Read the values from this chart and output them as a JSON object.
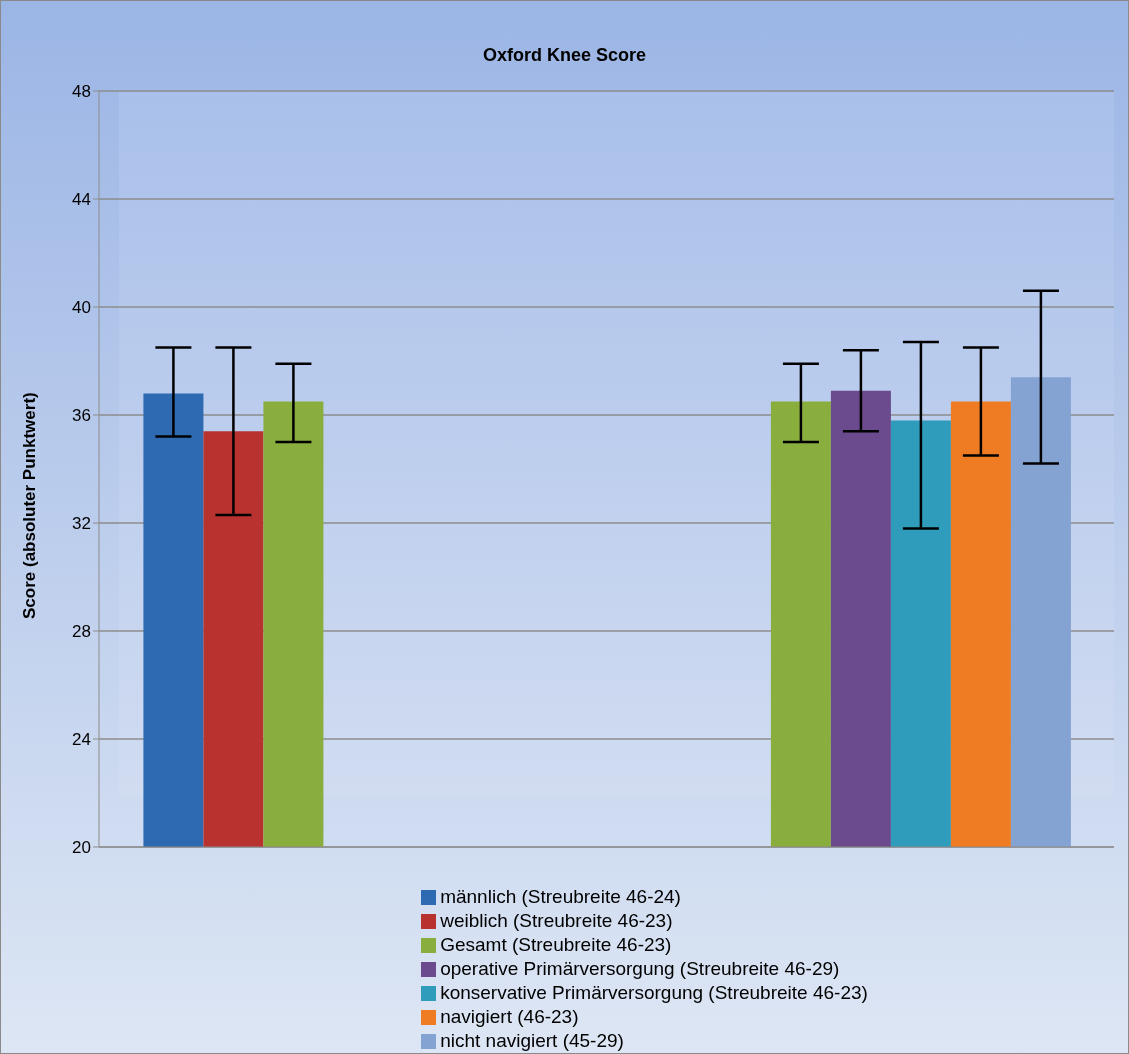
{
  "chart_data": {
    "type": "bar",
    "title": "Oxford Knee Score",
    "ylabel": "Score (absoluter Punktwert)",
    "categories": [
      null,
      null
    ],
    "ylim": [
      20,
      48
    ],
    "yticks": [
      20,
      24,
      28,
      32,
      36,
      40,
      44,
      48
    ],
    "grid": "y",
    "legend": "bottom",
    "tick_labels": "y",
    "series": [
      {
        "name": "männlich (Streubreite 46-24)",
        "color": "#2e6ab1",
        "values": [
          36.8,
          null
        ],
        "errors": [
          [
            35.2,
            38.5
          ],
          null
        ]
      },
      {
        "name": "weiblich (Streubreite 46-23)",
        "color": "#b83330",
        "values": [
          35.4,
          null
        ],
        "errors": [
          [
            32.3,
            38.5
          ],
          null
        ]
      },
      {
        "name": "Gesamt (Streubreite 46-23)",
        "color": "#8aae3e",
        "values": [
          36.5,
          36.5
        ],
        "errors": [
          [
            35.0,
            37.9
          ],
          [
            35.0,
            37.9
          ]
        ]
      },
      {
        "name": "operative Primärversorgung (Streubreite 46-29)",
        "color": "#6b4a8e",
        "values": [
          null,
          36.9
        ],
        "errors": [
          null,
          [
            35.4,
            38.4
          ]
        ]
      },
      {
        "name": "konservative Primärversorgung (Streubreite 46-23)",
        "color": "#2e9cba",
        "values": [
          null,
          35.8
        ],
        "errors": [
          null,
          [
            31.8,
            38.7
          ]
        ]
      },
      {
        "name": "navigiert (46-23)",
        "color": "#ef7c22",
        "values": [
          null,
          36.5
        ],
        "errors": [
          null,
          [
            34.5,
            38.5
          ]
        ]
      },
      {
        "name": "nicht navigiert (45-29)",
        "color": "#84a2d2",
        "values": [
          null,
          37.4
        ],
        "errors": [
          null,
          [
            34.2,
            40.6
          ]
        ]
      }
    ]
  }
}
